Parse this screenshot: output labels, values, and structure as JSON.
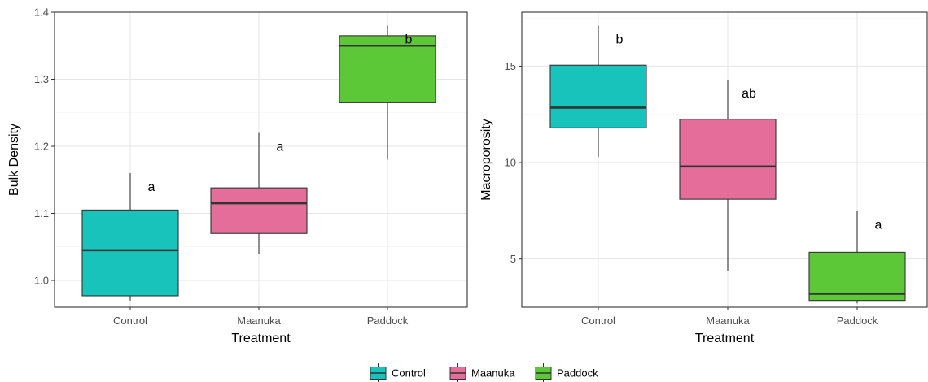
{
  "chart_data": [
    {
      "type": "box",
      "xlabel": "Treatment",
      "ylabel": "Bulk Density",
      "categories": [
        "Control",
        "Maanuka",
        "Paddock"
      ],
      "ylim": [
        0.96,
        1.4
      ],
      "yticks": [
        1.0,
        1.1,
        1.2,
        1.3,
        1.4
      ],
      "ytick_labels": [
        "1.0",
        "1.1",
        "1.2",
        "1.3",
        "1.4"
      ],
      "grid": true,
      "boxes": [
        {
          "category": "Control",
          "min": 0.97,
          "q1": 0.977,
          "median": 1.045,
          "q3": 1.105,
          "max": 1.16,
          "letter": "a"
        },
        {
          "category": "Maanuka",
          "min": 1.04,
          "q1": 1.07,
          "median": 1.115,
          "q3": 1.138,
          "max": 1.22,
          "letter": "a"
        },
        {
          "category": "Paddock",
          "min": 1.18,
          "q1": 1.265,
          "median": 1.35,
          "q3": 1.365,
          "max": 1.38,
          "letter": "b"
        }
      ]
    },
    {
      "type": "box",
      "xlabel": "Treatment",
      "ylabel": "Macroporosity",
      "categories": [
        "Control",
        "Maanuka",
        "Paddock"
      ],
      "ylim": [
        2.5,
        17.8
      ],
      "yticks": [
        5,
        10,
        15
      ],
      "ytick_labels": [
        "5",
        "10",
        "15"
      ],
      "grid": true,
      "boxes": [
        {
          "category": "Control",
          "min": 10.3,
          "q1": 11.8,
          "median": 12.85,
          "q3": 15.05,
          "max": 17.1,
          "letter": "b"
        },
        {
          "category": "Maanuka",
          "min": 4.4,
          "q1": 8.1,
          "median": 9.8,
          "q3": 12.25,
          "max": 14.3,
          "letter": "ab"
        },
        {
          "category": "Paddock",
          "min": 2.7,
          "q1": 2.85,
          "median": 3.2,
          "q3": 5.35,
          "max": 7.5,
          "letter": "a"
        }
      ]
    }
  ],
  "legend": {
    "placement": "bottom",
    "items": [
      {
        "label": "Control",
        "color": "#17C3BA"
      },
      {
        "label": "Maanuka",
        "color": "#E56D9A"
      },
      {
        "label": "Paddock",
        "color": "#5CC837"
      }
    ]
  }
}
